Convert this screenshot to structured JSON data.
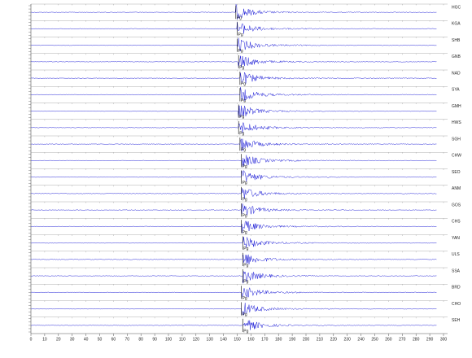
{
  "chart_data": {
    "type": "seismogram",
    "xlim": [
      0,
      300
    ],
    "xticks": [
      0,
      10,
      20,
      30,
      40,
      50,
      60,
      70,
      80,
      90,
      100,
      110,
      120,
      130,
      140,
      150,
      160,
      170,
      180,
      190,
      200,
      210,
      220,
      230,
      240,
      250,
      260,
      270,
      280,
      290,
      300
    ],
    "color": "#1a1ad6",
    "series": [
      {
        "name": "HGC",
        "onset": 149,
        "phase": "Pg"
      },
      {
        "name": "KGA",
        "onset": 150,
        "phase": "Pg"
      },
      {
        "name": "SHB",
        "onset": 150,
        "phase": "Pg"
      },
      {
        "name": "GNB",
        "onset": 151,
        "phase": "Pg"
      },
      {
        "name": "NAD",
        "onset": 152,
        "phase": "Pg"
      },
      {
        "name": "SYA",
        "onset": 152,
        "phase": "Pg"
      },
      {
        "name": "GMH",
        "onset": 151,
        "phase": "Pg"
      },
      {
        "name": "HWS",
        "onset": 151,
        "phase": "Pg"
      },
      {
        "name": "SGH",
        "onset": 152,
        "phase": "Pg"
      },
      {
        "name": "CHW",
        "onset": 153,
        "phase": "Pg"
      },
      {
        "name": "SEO",
        "onset": 153,
        "phase": "Pg"
      },
      {
        "name": "ANM",
        "onset": 153,
        "phase": "Pg"
      },
      {
        "name": "GOS",
        "onset": 153,
        "phase": "Pg"
      },
      {
        "name": "CHS",
        "onset": 153,
        "phase": "Pg"
      },
      {
        "name": "YAN",
        "onset": 154,
        "phase": "Pg"
      },
      {
        "name": "ULS",
        "onset": 154,
        "phase": "Pg"
      },
      {
        "name": "SSA",
        "onset": 154,
        "phase": "Pg"
      },
      {
        "name": "BRD",
        "onset": 153,
        "phase": "Pg"
      },
      {
        "name": "CHO",
        "onset": 153,
        "phase": "Pg"
      },
      {
        "name": "SEH",
        "onset": 154,
        "phase": "Pg"
      }
    ]
  }
}
